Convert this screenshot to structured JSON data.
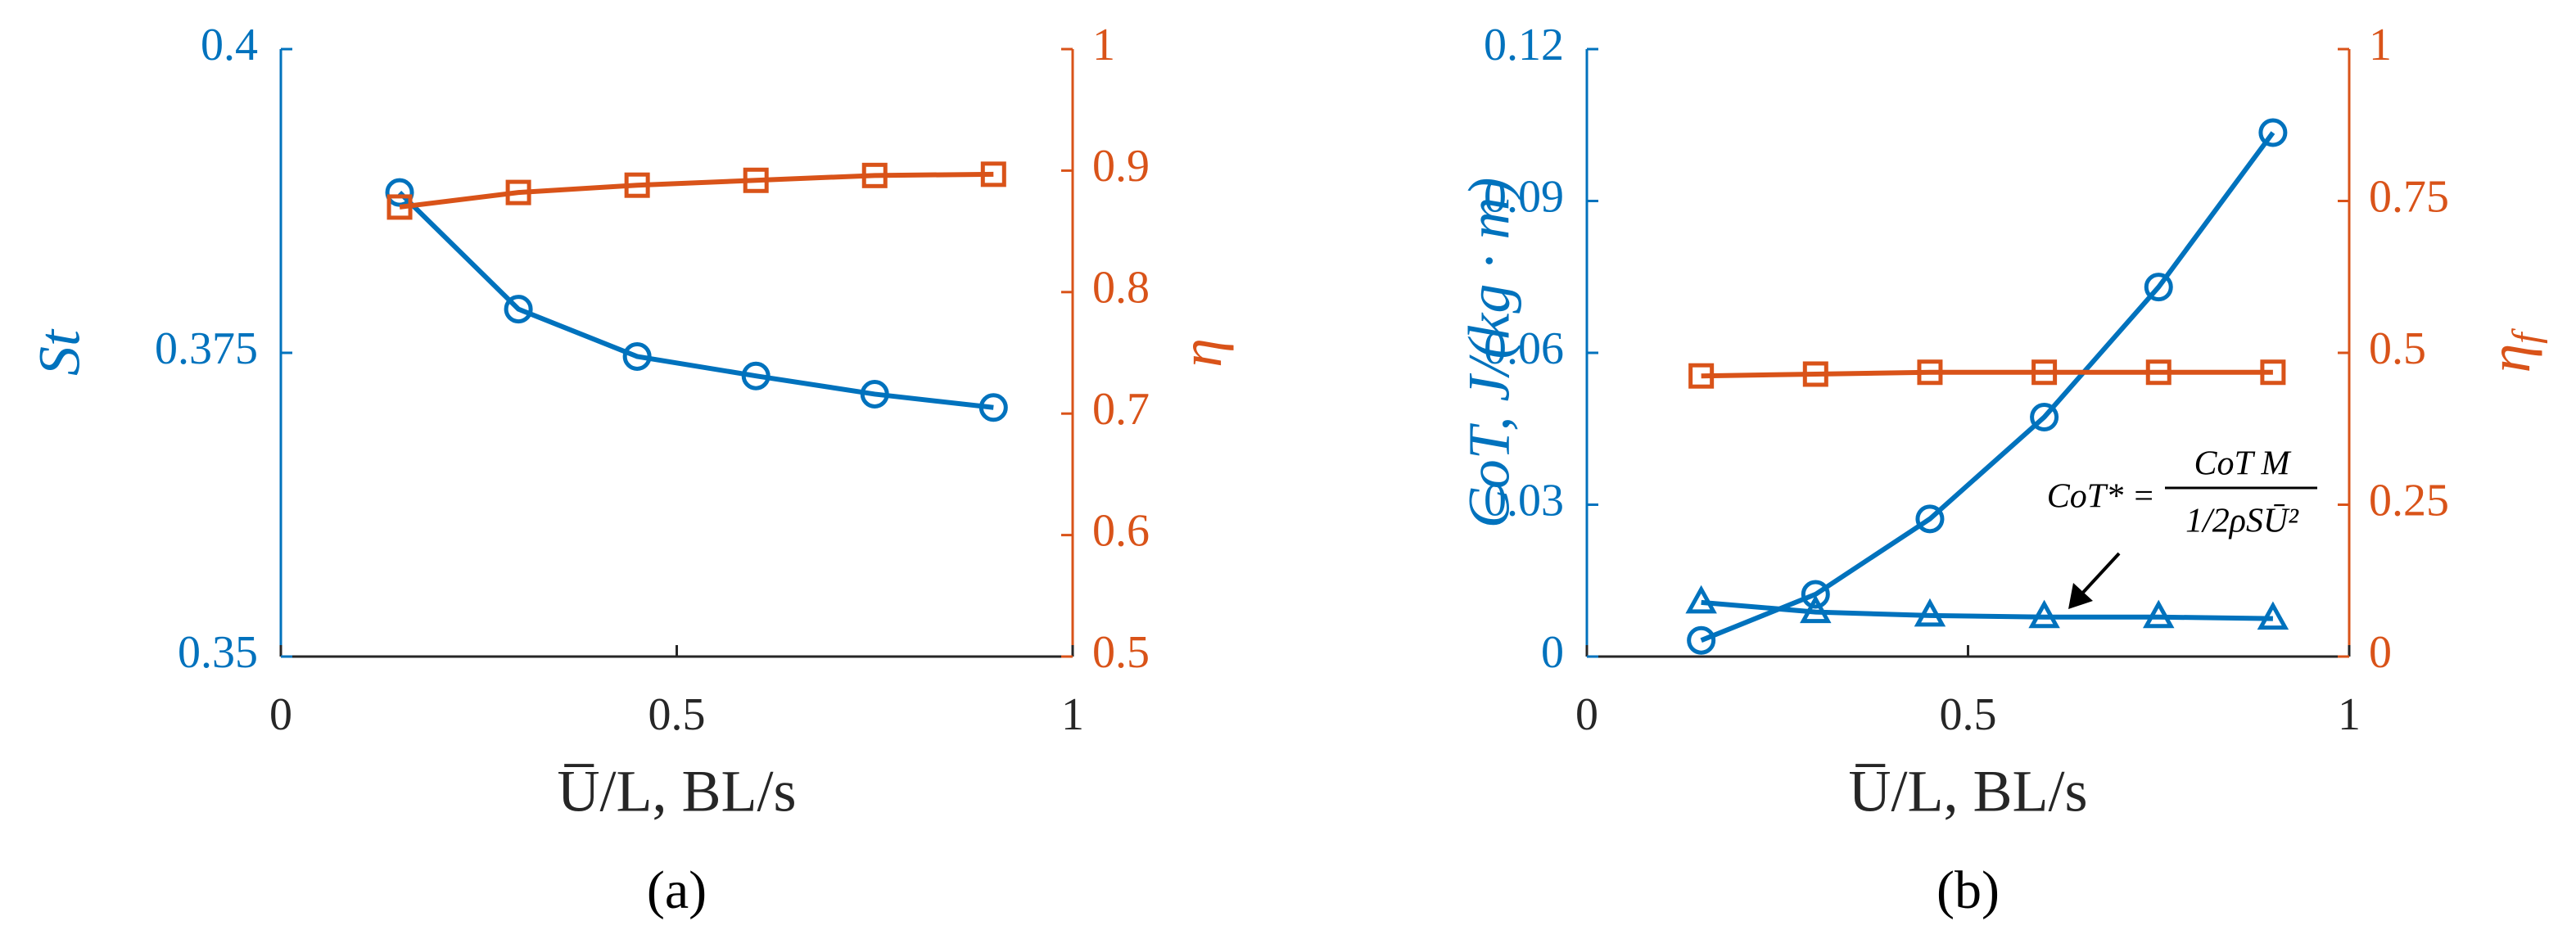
{
  "chart_data": [
    {
      "type": "line",
      "caption": "(a)",
      "xlabel": "U̅/L, BL/s",
      "ylabel": "St",
      "y2label": {
        "main": "η"
      },
      "ycolor": "#0072bd",
      "y2color": "#d95319",
      "x": [
        0.15,
        0.3,
        0.45,
        0.6,
        0.75,
        0.9
      ],
      "xlim": [
        0,
        1
      ],
      "xticks": [
        0,
        0.5,
        1
      ],
      "ylim": [
        0.35,
        0.4
      ],
      "yticks": [
        0.35,
        0.375,
        0.4
      ],
      "y2lim": [
        0.5,
        1
      ],
      "y2ticks": [
        0.5,
        0.6,
        0.7,
        0.8,
        0.9,
        1
      ],
      "series": [
        {
          "color": "#0072bd",
          "marker": "circle",
          "values": [
            0.3882,
            0.3786,
            0.3747,
            0.3731,
            0.3716,
            0.3705
          ]
        },
        {
          "color": "#d95319",
          "marker": "square",
          "axis": "y2",
          "values": [
            0.87,
            0.882,
            0.888,
            0.892,
            0.896,
            0.897
          ]
        }
      ]
    },
    {
      "type": "line",
      "caption": "(b)",
      "xlabel": "U̅/L, BL/s",
      "ylabel": "CoT, J/(kg · m)",
      "y2label": {
        "main": "η",
        "sub": "f"
      },
      "ycolor": "#0072bd",
      "y2color": "#d95319",
      "x": [
        0.15,
        0.3,
        0.45,
        0.6,
        0.75,
        0.9
      ],
      "xlim": [
        0,
        1
      ],
      "xticks": [
        0,
        0.5,
        1
      ],
      "ylim": [
        0,
        0.12
      ],
      "yticks": [
        0,
        0.03,
        0.06,
        0.09,
        0.12
      ],
      "y2lim": [
        0,
        1
      ],
      "y2ticks": [
        0,
        0.25,
        0.5,
        0.75,
        1
      ],
      "series": [
        {
          "color": "#0072bd",
          "marker": "circle",
          "values": [
            0.0032,
            0.0123,
            0.0272,
            0.0473,
            0.073,
            0.1035
          ]
        },
        {
          "color": "#0072bd",
          "marker": "triangle",
          "values": [
            0.0107,
            0.0088,
            0.0081,
            0.0078,
            0.0078,
            0.0075
          ]
        },
        {
          "color": "#d95319",
          "marker": "square",
          "axis": "y2",
          "values": [
            0.462,
            0.465,
            0.468,
            0.468,
            0.468,
            0.468
          ]
        }
      ],
      "annotation": {
        "lhs": "CoT* =",
        "numerator": "CoT M",
        "denominator": "1/2ρSŪ²"
      }
    }
  ]
}
